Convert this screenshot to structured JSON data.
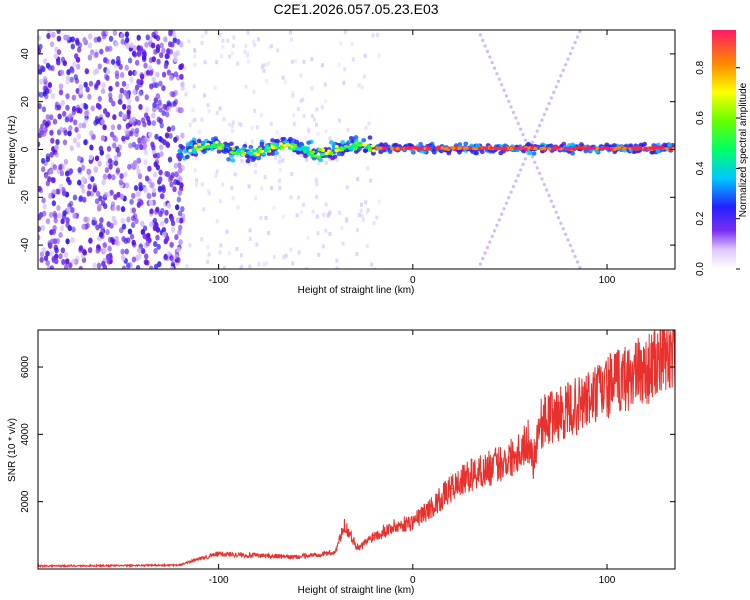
{
  "title": "C2E1.2026.057.05.23.E03",
  "colors": {
    "snr_line": "#e8302c",
    "frame": "#000000"
  },
  "chart_data": [
    {
      "type": "heatmap",
      "name": "spectrogram",
      "xlabel": "Height of straight line (km)",
      "ylabel": "Frequency (Hz)",
      "xlim": [
        -193,
        135
      ],
      "ylim": [
        -50,
        50
      ],
      "xticks": [
        -100,
        0,
        100
      ],
      "yticks": [
        -40,
        -20,
        0,
        20,
        40
      ],
      "colorbar": {
        "label": "Normalized spectral amplitude",
        "range": [
          0.0,
          0.95
        ],
        "ticks": [
          0.0,
          0.2,
          0.4,
          0.6,
          0.8
        ]
      },
      "features": [
        {
          "desc": "noise field",
          "x": [
            -193,
            -120
          ],
          "amplitude": 0.25
        },
        {
          "desc": "carrier line",
          "x": [
            -120,
            135
          ],
          "y": 0,
          "amplitude": 0.95
        },
        {
          "desc": "crossing lines",
          "x": [
            30,
            135
          ],
          "crossing_x": 60,
          "crossing_y": 0
        }
      ]
    },
    {
      "type": "line",
      "name": "snr",
      "xlabel": "Height of straight line (km)",
      "ylabel": "SNR (10 * v/v)",
      "xlim": [
        -193,
        135
      ],
      "ylim": [
        0,
        7100
      ],
      "xticks": [
        -100,
        0,
        100
      ],
      "yticks": [
        2000,
        4000,
        6000
      ],
      "series": [
        {
          "name": "SNR",
          "x": [
            -193,
            -150,
            -120,
            -110,
            -100,
            -80,
            -60,
            -40,
            -35,
            -28,
            -20,
            -10,
            0,
            10,
            20,
            30,
            40,
            50,
            60,
            62,
            65,
            70,
            80,
            90,
            100,
            110,
            120,
            130,
            135
          ],
          "y": [
            90,
            100,
            120,
            300,
            450,
            400,
            350,
            500,
            1300,
            600,
            1000,
            1250,
            1400,
            1850,
            2400,
            2800,
            3000,
            3300,
            3800,
            3200,
            4300,
            4500,
            4700,
            5000,
            5400,
            5700,
            5900,
            6300,
            6500
          ]
        }
      ]
    }
  ]
}
